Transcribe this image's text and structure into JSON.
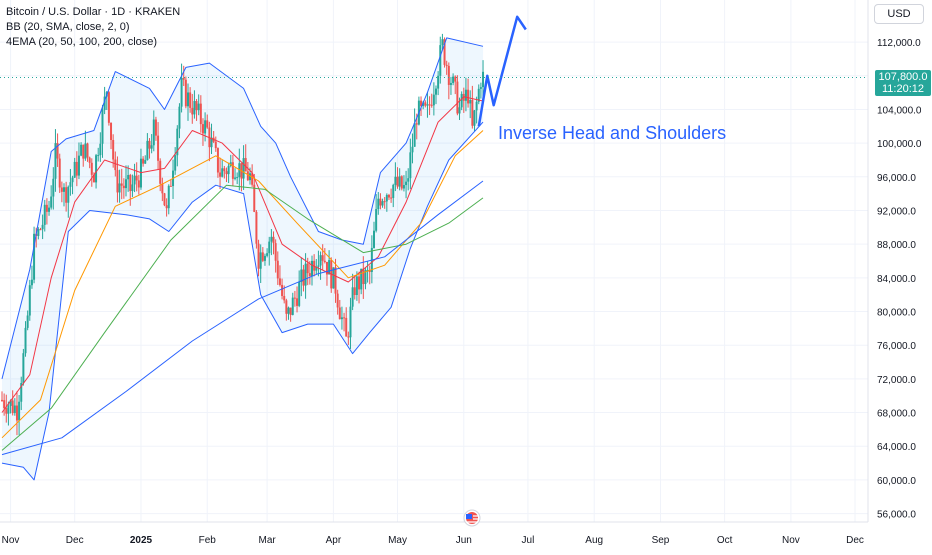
{
  "legend": {
    "line1": "Bitcoin / U.S. Dollar · 1D · KRAKEN",
    "line2": "BB (20, SMA, close, 2, 0)",
    "line3": "4EMA (20, 50, 100, 200, close)"
  },
  "currency": "USD",
  "last_price": {
    "value": "107,800.0",
    "countdown": "11:20:12",
    "color": "#26a69a"
  },
  "annotation": {
    "text": "Inverse Head and Shoulders",
    "color": "#2962ff"
  },
  "colors": {
    "up": "#26a69a",
    "down": "#ef5350",
    "bb": "#2962ff",
    "ema20": "#f23645",
    "ema50": "#ff9800",
    "ema100": "#4caf50",
    "ema200": "#2962ff",
    "price_line": "#26a69a",
    "grid": "#f0f3fa"
  },
  "chart_data": {
    "type": "line",
    "title": "Bitcoin / U.S. Dollar · 1D · KRAKEN",
    "x_axis": {
      "ticks": [
        "Nov",
        "Dec",
        "2025",
        "Feb",
        "Mar",
        "Apr",
        "May",
        "Jun",
        "Jul",
        "Aug",
        "Sep",
        "Oct",
        "Nov",
        "Dec"
      ]
    },
    "y_axis": {
      "ticks": [
        "112,000.0",
        "108,000.0",
        "104,000.0",
        "100,000.0",
        "96,000.0",
        "92,000.0",
        "88,000.0",
        "84,000.0",
        "80,000.0",
        "76,000.0",
        "72,000.0",
        "68,000.0",
        "64,000.0",
        "60,000.0",
        "56,000.0"
      ],
      "ylim": [
        55000,
        117000
      ]
    },
    "grid": true,
    "series": [
      {
        "name": "Price (close, approx.)",
        "points": [
          [
            "2024-10-28",
            69500
          ],
          [
            "2024-11-04",
            68500
          ],
          [
            "2024-11-08",
            76500
          ],
          [
            "2024-11-12",
            88000
          ],
          [
            "2024-11-19",
            92500
          ],
          [
            "2024-11-22",
            98500
          ],
          [
            "2024-11-26",
            94000
          ],
          [
            "2024-12-01",
            96500
          ],
          [
            "2024-12-05",
            99500
          ],
          [
            "2024-12-10",
            96500
          ],
          [
            "2024-12-16",
            106500
          ],
          [
            "2024-12-20",
            95500
          ],
          [
            "2024-12-27",
            94500
          ],
          [
            "2025-01-02",
            97000
          ],
          [
            "2025-01-07",
            101500
          ],
          [
            "2025-01-13",
            91500
          ],
          [
            "2025-01-20",
            106500
          ],
          [
            "2025-01-25",
            104500
          ],
          [
            "2025-02-01",
            101500
          ],
          [
            "2025-02-07",
            96500
          ],
          [
            "2025-02-14",
            97500
          ],
          [
            "2025-02-21",
            96000
          ],
          [
            "2025-02-25",
            86500
          ],
          [
            "2025-03-03",
            89000
          ],
          [
            "2025-03-10",
            79000
          ],
          [
            "2025-03-17",
            83500
          ],
          [
            "2025-03-26",
            87500
          ],
          [
            "2025-04-02",
            83000
          ],
          [
            "2025-04-07",
            76500
          ],
          [
            "2025-04-11",
            83000
          ],
          [
            "2025-04-18",
            84500
          ],
          [
            "2025-04-22",
            93500
          ],
          [
            "2025-04-29",
            95000
          ],
          [
            "2025-05-05",
            94500
          ],
          [
            "2025-05-10",
            103500
          ],
          [
            "2025-05-15",
            103500
          ],
          [
            "2025-05-22",
            111500
          ],
          [
            "2025-05-25",
            108500
          ],
          [
            "2025-05-30",
            104000
          ],
          [
            "2025-06-03",
            106000
          ],
          [
            "2025-06-05",
            101500
          ],
          [
            "2025-06-09",
            107800
          ]
        ]
      },
      {
        "name": "BB upper (approx.)",
        "points": [
          [
            "2024-10-28",
            72000
          ],
          [
            "2024-11-10",
            85000
          ],
          [
            "2024-11-20",
            99000
          ],
          [
            "2024-11-27",
            100500
          ],
          [
            "2024-12-10",
            101500
          ],
          [
            "2024-12-20",
            108500
          ],
          [
            "2025-01-05",
            106500
          ],
          [
            "2025-01-12",
            104000
          ],
          [
            "2025-01-22",
            109000
          ],
          [
            "2025-02-02",
            109500
          ],
          [
            "2025-02-18",
            106500
          ],
          [
            "2025-02-26",
            102000
          ],
          [
            "2025-03-05",
            100000
          ],
          [
            "2025-03-12",
            96000
          ],
          [
            "2025-03-25",
            89500
          ],
          [
            "2025-04-05",
            88500
          ],
          [
            "2025-04-15",
            88000
          ],
          [
            "2025-04-23",
            96500
          ],
          [
            "2025-05-05",
            100000
          ],
          [
            "2025-05-15",
            106000
          ],
          [
            "2025-05-24",
            112500
          ],
          [
            "2025-06-10",
            111500
          ]
        ]
      },
      {
        "name": "BB lower (approx.)",
        "points": [
          [
            "2024-10-28",
            62000
          ],
          [
            "2024-11-07",
            61500
          ],
          [
            "2024-11-12",
            60000
          ],
          [
            "2024-11-19",
            68000
          ],
          [
            "2024-11-28",
            89500
          ],
          [
            "2024-12-08",
            92000
          ],
          [
            "2024-12-25",
            91500
          ],
          [
            "2025-01-05",
            91000
          ],
          [
            "2025-01-14",
            89500
          ],
          [
            "2025-01-25",
            93000
          ],
          [
            "2025-02-05",
            95000
          ],
          [
            "2025-02-18",
            94000
          ],
          [
            "2025-02-26",
            82000
          ],
          [
            "2025-03-08",
            77500
          ],
          [
            "2025-03-20",
            78500
          ],
          [
            "2025-04-01",
            78500
          ],
          [
            "2025-04-10",
            75000
          ],
          [
            "2025-04-18",
            77500
          ],
          [
            "2025-04-28",
            80500
          ],
          [
            "2025-05-07",
            87500
          ],
          [
            "2025-05-15",
            92500
          ],
          [
            "2025-05-25",
            98000
          ],
          [
            "2025-06-10",
            102500
          ]
        ]
      },
      {
        "name": "EMA 20 (approx.)",
        "points": [
          [
            "2024-10-28",
            68000
          ],
          [
            "2024-11-10",
            72500
          ],
          [
            "2024-11-20",
            84000
          ],
          [
            "2024-12-01",
            93000
          ],
          [
            "2024-12-15",
            98000
          ],
          [
            "2025-01-01",
            96500
          ],
          [
            "2025-01-12",
            97000
          ],
          [
            "2025-01-25",
            101500
          ],
          [
            "2025-02-08",
            100000
          ],
          [
            "2025-02-22",
            96500
          ],
          [
            "2025-03-08",
            88000
          ],
          [
            "2025-03-22",
            85500
          ],
          [
            "2025-04-08",
            83500
          ],
          [
            "2025-04-22",
            86500
          ],
          [
            "2025-05-05",
            93000
          ],
          [
            "2025-05-20",
            102500
          ],
          [
            "2025-06-01",
            105500
          ],
          [
            "2025-06-10",
            105000
          ]
        ]
      },
      {
        "name": "EMA 50 (approx.)",
        "points": [
          [
            "2024-10-28",
            65000
          ],
          [
            "2024-11-15",
            69500
          ],
          [
            "2024-12-01",
            82500
          ],
          [
            "2024-12-20",
            92500
          ],
          [
            "2025-01-10",
            95000
          ],
          [
            "2025-02-05",
            98500
          ],
          [
            "2025-02-25",
            95500
          ],
          [
            "2025-03-15",
            90500
          ],
          [
            "2025-04-08",
            84000
          ],
          [
            "2025-04-25",
            85500
          ],
          [
            "2025-05-12",
            90500
          ],
          [
            "2025-05-28",
            98500
          ],
          [
            "2025-06-10",
            101500
          ]
        ]
      },
      {
        "name": "EMA 100 (approx.)",
        "points": [
          [
            "2024-10-28",
            63500
          ],
          [
            "2024-11-20",
            68500
          ],
          [
            "2024-12-15",
            77500
          ],
          [
            "2025-01-15",
            88500
          ],
          [
            "2025-02-10",
            95000
          ],
          [
            "2025-02-28",
            94500
          ],
          [
            "2025-03-20",
            91000
          ],
          [
            "2025-04-15",
            87000
          ],
          [
            "2025-05-05",
            88000
          ],
          [
            "2025-05-25",
            90500
          ],
          [
            "2025-06-10",
            93500
          ]
        ]
      },
      {
        "name": "EMA 200 (approx.)",
        "points": [
          [
            "2024-10-28",
            63000
          ],
          [
            "2024-11-25",
            65000
          ],
          [
            "2024-12-25",
            70500
          ],
          [
            "2025-01-25",
            76500
          ],
          [
            "2025-02-25",
            81500
          ],
          [
            "2025-03-25",
            84500
          ],
          [
            "2025-04-25",
            86500
          ],
          [
            "2025-05-20",
            91500
          ],
          [
            "2025-06-10",
            95500
          ]
        ]
      },
      {
        "name": "Projection arrow",
        "points": [
          [
            "2025-06-08",
            102000
          ],
          [
            "2025-06-12",
            108000
          ],
          [
            "2025-06-15",
            104500
          ],
          [
            "2025-06-26",
            115000
          ],
          [
            "2025-06-30",
            113500
          ]
        ]
      }
    ]
  }
}
